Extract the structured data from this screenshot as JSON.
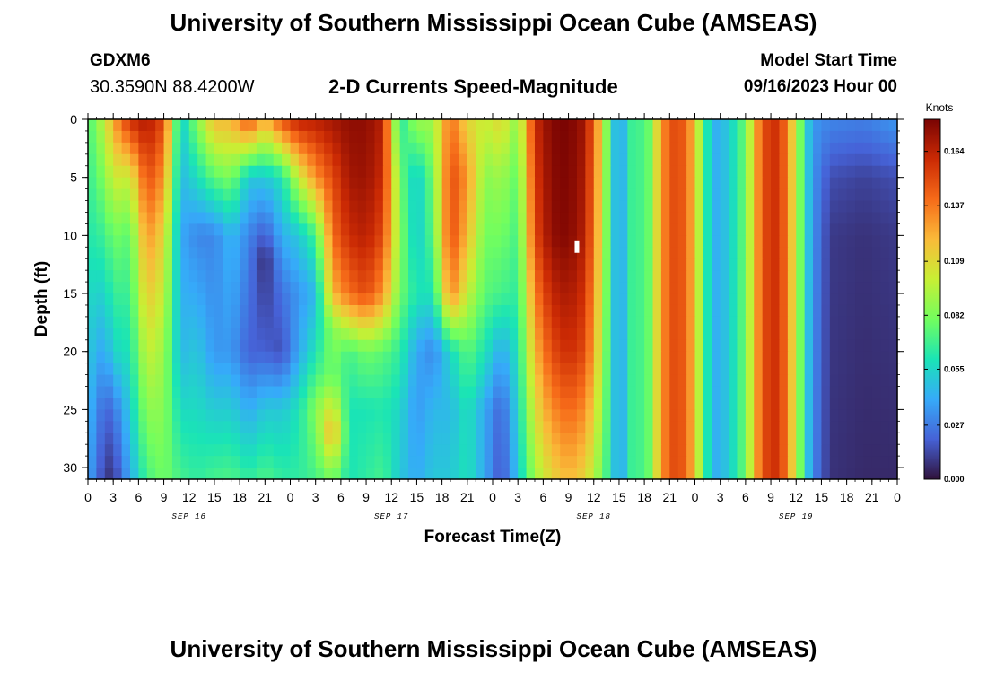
{
  "header": {
    "title": "University of Southern Mississippi Ocean Cube (AMSEAS)",
    "station_id": "GDXM6",
    "station_coords": "30.3590N  88.4200W",
    "plot_title": "2-D Currents Speed-Magnitude",
    "start_label": "Model Start Time",
    "start_value": "09/16/2023 Hour 00"
  },
  "footer": {
    "title": "University of Southern Mississippi Ocean Cube (AMSEAS)"
  },
  "chart_data": {
    "type": "heatmap",
    "xlabel": "Forecast Time(Z)",
    "ylabel": "Depth (ft)",
    "x_range_hours": [
      0,
      96
    ],
    "y_range": [
      0,
      31
    ],
    "x_tick_labels": [
      "0",
      "3",
      "6",
      "9",
      "12",
      "15",
      "18",
      "21",
      "0",
      "3",
      "6",
      "9",
      "12",
      "15",
      "18",
      "21",
      "0",
      "3",
      "6",
      "9",
      "12",
      "15",
      "18",
      "21",
      "0",
      "3",
      "6",
      "9",
      "12",
      "15",
      "18",
      "21",
      "0"
    ],
    "day_labels": [
      "SEP 16",
      "SEP 17",
      "SEP 18",
      "SEP 19"
    ],
    "y_ticks": [
      0,
      5,
      10,
      15,
      20,
      25,
      30
    ],
    "colorbar": {
      "title": "Knots",
      "ticks": [
        "0.164",
        "0.137",
        "0.109",
        "0.082",
        "0.055",
        "0.027",
        "0.000"
      ],
      "tick_values": [
        0.164,
        0.137,
        0.109,
        0.082,
        0.055,
        0.027,
        0.0
      ],
      "range": [
        0,
        0.18
      ],
      "palette": [
        "#30123b",
        "#4662d7",
        "#36aaf9",
        "#1ae4b6",
        "#72fe5e",
        "#c8ef34",
        "#faba39",
        "#f66b19",
        "#cb2a04",
        "#7a0403"
      ]
    },
    "profiles": [
      {
        "hour": 0,
        "depths": [
          0,
          10,
          20,
          31
        ],
        "speeds": [
          0.07,
          0.062,
          0.05,
          0.04
        ]
      },
      {
        "hour": 2,
        "depths": [
          0,
          10,
          20,
          25,
          31
        ],
        "speeds": [
          0.1,
          0.068,
          0.038,
          0.02,
          0.01
        ]
      },
      {
        "hour": 3,
        "depths": [
          0,
          10,
          20,
          25,
          31
        ],
        "speeds": [
          0.125,
          0.08,
          0.055,
          0.025,
          0.008
        ]
      },
      {
        "hour": 5,
        "depths": [
          0,
          5,
          10,
          20,
          31
        ],
        "speeds": [
          0.16,
          0.1,
          0.075,
          0.06,
          0.04
        ]
      },
      {
        "hour": 7,
        "depths": [
          0,
          10,
          20,
          31
        ],
        "speeds": [
          0.168,
          0.13,
          0.1,
          0.07
        ]
      },
      {
        "hour": 9,
        "depths": [
          0,
          10,
          20,
          31
        ],
        "speeds": [
          0.15,
          0.11,
          0.09,
          0.08
        ]
      },
      {
        "hour": 11,
        "depths": [
          0,
          10,
          20,
          31
        ],
        "speeds": [
          0.05,
          0.04,
          0.045,
          0.07
        ]
      },
      {
        "hour": 13,
        "depths": [
          0,
          10,
          20,
          31
        ],
        "speeds": [
          0.085,
          0.03,
          0.05,
          0.065
        ]
      },
      {
        "hour": 15,
        "depths": [
          0,
          10,
          20,
          31
        ],
        "speeds": [
          0.12,
          0.03,
          0.035,
          0.07
        ]
      },
      {
        "hour": 17,
        "depths": [
          0,
          10,
          20,
          31
        ],
        "speeds": [
          0.12,
          0.045,
          0.035,
          0.072
        ]
      },
      {
        "hour": 19,
        "depths": [
          0,
          5,
          10,
          20,
          31
        ],
        "speeds": [
          0.15,
          0.05,
          0.03,
          0.02,
          0.065
        ]
      },
      {
        "hour": 21,
        "depths": [
          0,
          5,
          12,
          20,
          25,
          31
        ],
        "speeds": [
          0.12,
          0.05,
          0.005,
          0.02,
          0.05,
          0.072
        ]
      },
      {
        "hour": 23,
        "depths": [
          0,
          5,
          15,
          20,
          25,
          31
        ],
        "speeds": [
          0.15,
          0.06,
          0.025,
          0.015,
          0.05,
          0.065
        ]
      },
      {
        "hour": 25,
        "depths": [
          0,
          5,
          10,
          15,
          20,
          25,
          31
        ],
        "speeds": [
          0.165,
          0.1,
          0.05,
          0.035,
          0.04,
          0.06,
          0.065
        ]
      },
      {
        "hour": 27,
        "depths": [
          0,
          5,
          10,
          15,
          20,
          25,
          31
        ],
        "speeds": [
          0.165,
          0.13,
          0.07,
          0.045,
          0.06,
          0.085,
          0.07
        ]
      },
      {
        "hour": 29,
        "depths": [
          0,
          5,
          10,
          15,
          18,
          22,
          27,
          31
        ],
        "speeds": [
          0.17,
          0.15,
          0.14,
          0.12,
          0.085,
          0.08,
          0.125,
          0.08
        ]
      },
      {
        "hour": 31,
        "depths": [
          0,
          5,
          10,
          15,
          20,
          25,
          31
        ],
        "speeds": [
          0.175,
          0.17,
          0.16,
          0.14,
          0.07,
          0.06,
          0.06
        ]
      },
      {
        "hour": 33,
        "depths": [
          0,
          5,
          10,
          15,
          20,
          25,
          31
        ],
        "speeds": [
          0.175,
          0.172,
          0.165,
          0.15,
          0.08,
          0.06,
          0.065
        ]
      },
      {
        "hour": 35,
        "depths": [
          0,
          5,
          10,
          15,
          20,
          25,
          31
        ],
        "speeds": [
          0.165,
          0.16,
          0.15,
          0.13,
          0.075,
          0.062,
          0.07
        ]
      },
      {
        "hour": 37,
        "depths": [
          0,
          5,
          10,
          15,
          20,
          25,
          31
        ],
        "speeds": [
          0.06,
          0.08,
          0.085,
          0.08,
          0.065,
          0.055,
          0.05
        ]
      },
      {
        "hour": 39,
        "depths": [
          0,
          5,
          10,
          15,
          20,
          25,
          31
        ],
        "speeds": [
          0.09,
          0.05,
          0.05,
          0.06,
          0.04,
          0.035,
          0.04
        ]
      },
      {
        "hour": 41,
        "depths": [
          0,
          5,
          10,
          15,
          20,
          25,
          31
        ],
        "speeds": [
          0.09,
          0.08,
          0.075,
          0.06,
          0.03,
          0.045,
          0.05
        ]
      },
      {
        "hour": 43,
        "depths": [
          0,
          5,
          10,
          15,
          20,
          25,
          31
        ],
        "speeds": [
          0.14,
          0.15,
          0.15,
          0.135,
          0.055,
          0.045,
          0.05
        ]
      },
      {
        "hour": 45,
        "depths": [
          0,
          5,
          10,
          15,
          20,
          25,
          31
        ],
        "speeds": [
          0.11,
          0.13,
          0.12,
          0.1,
          0.075,
          0.06,
          0.06
        ]
      },
      {
        "hour": 47,
        "depths": [
          0,
          5,
          10,
          15,
          20,
          25,
          31
        ],
        "speeds": [
          0.1,
          0.085,
          0.08,
          0.075,
          0.06,
          0.04,
          0.04
        ]
      },
      {
        "hour": 49,
        "depths": [
          0,
          5,
          10,
          15,
          20,
          25,
          31
        ],
        "speeds": [
          0.11,
          0.09,
          0.08,
          0.07,
          0.04,
          0.02,
          0.015
        ]
      },
      {
        "hour": 51,
        "depths": [
          0,
          5,
          10,
          15,
          20,
          25,
          31
        ],
        "speeds": [
          0.085,
          0.075,
          0.07,
          0.065,
          0.06,
          0.055,
          0.05
        ]
      },
      {
        "hour": 53,
        "depths": [
          0,
          10,
          20,
          31
        ],
        "speeds": [
          0.16,
          0.15,
          0.12,
          0.09
        ]
      },
      {
        "hour": 55,
        "depths": [
          0,
          10,
          20,
          31
        ],
        "speeds": [
          0.178,
          0.175,
          0.15,
          0.11
        ]
      },
      {
        "hour": 57,
        "depths": [
          0,
          10,
          20,
          31
        ],
        "speeds": [
          0.18,
          0.178,
          0.16,
          0.12
        ]
      },
      {
        "hour": 59,
        "depths": [
          0,
          10,
          20,
          31
        ],
        "speeds": [
          0.17,
          0.165,
          0.15,
          0.11
        ]
      },
      {
        "hour": 61,
        "depths": [
          0,
          10,
          20,
          31
        ],
        "speeds": [
          0.11,
          0.105,
          0.095,
          0.08
        ]
      },
      {
        "hour": 62,
        "depths": [
          0,
          31
        ],
        "speeds": [
          0.06,
          0.06
        ]
      },
      {
        "hour": 63,
        "depths": [
          0,
          31
        ],
        "speeds": [
          0.035,
          0.035
        ]
      },
      {
        "hour": 64,
        "depths": [
          0,
          31
        ],
        "speeds": [
          0.055,
          0.055
        ]
      },
      {
        "hour": 65,
        "depths": [
          0,
          31
        ],
        "speeds": [
          0.08,
          0.08
        ]
      },
      {
        "hour": 66,
        "depths": [
          0,
          31
        ],
        "speeds": [
          0.06,
          0.06
        ]
      },
      {
        "hour": 67,
        "depths": [
          0,
          31
        ],
        "speeds": [
          0.095,
          0.095
        ]
      },
      {
        "hour": 69,
        "depths": [
          0,
          31
        ],
        "speeds": [
          0.15,
          0.15
        ]
      },
      {
        "hour": 71,
        "depths": [
          0,
          31
        ],
        "speeds": [
          0.145,
          0.145
        ]
      },
      {
        "hour": 73,
        "depths": [
          0,
          31
        ],
        "speeds": [
          0.08,
          0.08
        ]
      },
      {
        "hour": 74,
        "depths": [
          0,
          31
        ],
        "speeds": [
          0.04,
          0.04
        ]
      },
      {
        "hour": 76,
        "depths": [
          0,
          31
        ],
        "speeds": [
          0.05,
          0.05
        ]
      },
      {
        "hour": 78,
        "depths": [
          0,
          31
        ],
        "speeds": [
          0.08,
          0.08
        ]
      },
      {
        "hour": 80,
        "depths": [
          0,
          31
        ],
        "speeds": [
          0.15,
          0.15
        ]
      },
      {
        "hour": 82,
        "depths": [
          0,
          31
        ],
        "speeds": [
          0.16,
          0.16
        ]
      },
      {
        "hour": 84,
        "depths": [
          0,
          31
        ],
        "speeds": [
          0.1,
          0.1
        ]
      },
      {
        "hour": 85,
        "depths": [
          0,
          31
        ],
        "speeds": [
          0.06,
          0.06
        ]
      },
      {
        "hour": 86,
        "depths": [
          0,
          31
        ],
        "speeds": [
          0.035,
          0.03
        ]
      },
      {
        "hour": 88,
        "depths": [
          0,
          5,
          10,
          31
        ],
        "speeds": [
          0.03,
          0.015,
          0.01,
          0.008
        ]
      },
      {
        "hour": 92,
        "depths": [
          0,
          5,
          10,
          31
        ],
        "speeds": [
          0.028,
          0.012,
          0.008,
          0.006
        ]
      },
      {
        "hour": 96,
        "depths": [
          0,
          5,
          10,
          31
        ],
        "speeds": [
          0.035,
          0.015,
          0.01,
          0.006
        ]
      }
    ],
    "missing_cells": [
      {
        "hour": 58,
        "depth_range": [
          10.5,
          11.5
        ]
      }
    ]
  }
}
